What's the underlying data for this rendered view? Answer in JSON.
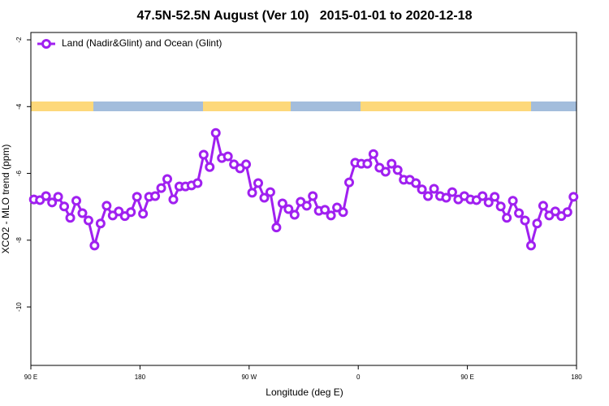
{
  "chart_data": {
    "type": "line",
    "title": "47.5N-52.5N August (Ver 10)   2015-01-01 to 2020-12-18",
    "xlabel": "Longitude (deg E)",
    "ylabel": "XCO2 - MLO trend (ppm)",
    "xlim": [
      90,
      540
    ],
    "ylim": [
      -11.75,
      -1.78
    ],
    "xticks": [
      {
        "value": 90,
        "label": "90 E"
      },
      180,
      {
        "value": 270,
        "label": "90 W"
      },
      {
        "value": 360,
        "label": "0"
      },
      {
        "value": 450,
        "label": "90 E"
      },
      {
        "value": 540,
        "label": "180"
      }
    ],
    "yticks": [
      -2,
      -4,
      -6,
      -8,
      -10
    ],
    "legend": "upper left",
    "x": [
      92.5,
      97.5,
      102.5,
      107.5,
      112.5,
      117.5,
      122.5,
      127.5,
      132.5,
      137.5,
      142.5,
      147.5,
      152.5,
      157.5,
      162.5,
      167.5,
      172.5,
      177.5,
      182.5,
      187.5,
      192.5,
      197.5,
      202.5,
      207.5,
      212.5,
      217.5,
      222.5,
      227.5,
      232.5,
      237.5,
      242.5,
      247.5,
      252.5,
      257.5,
      262.5,
      267.5,
      272.5,
      277.5,
      282.5,
      287.5,
      292.5,
      297.5,
      302.5,
      307.5,
      312.5,
      317.5,
      322.5,
      327.5,
      332.5,
      337.5,
      342.5,
      347.5,
      352.5,
      357.5,
      362.5,
      367.5,
      372.5,
      377.5,
      382.5,
      387.5,
      392.5,
      397.5,
      402.5,
      407.5,
      412.5,
      417.5,
      422.5,
      427.5,
      432.5,
      437.5,
      442.5,
      447.5,
      452.5,
      457.5,
      462.5,
      467.5,
      472.5,
      477.5,
      482.5,
      487.5,
      492.5,
      497.5,
      502.5,
      507.5,
      512.5,
      517.5,
      522.5,
      527.5,
      532.5,
      537.5
    ],
    "series": [
      {
        "name": "Land (Nadir&Glint) and Ocean (Glint)",
        "color": "#a020f0",
        "values": [
          -6.78,
          -6.8,
          -6.68,
          -6.87,
          -6.7,
          -6.99,
          -7.33,
          -6.82,
          -7.19,
          -7.41,
          -8.16,
          -7.5,
          -6.97,
          -7.26,
          -7.14,
          -7.28,
          -7.16,
          -6.7,
          -7.21,
          -6.7,
          -6.68,
          -6.44,
          -6.17,
          -6.78,
          -6.39,
          -6.39,
          -6.36,
          -6.29,
          -5.44,
          -5.81,
          -4.79,
          -5.54,
          -5.49,
          -5.73,
          -5.85,
          -5.73,
          -6.58,
          -6.29,
          -6.73,
          -6.56,
          -7.62,
          -6.9,
          -7.07,
          -7.24,
          -6.85,
          -6.97,
          -6.68,
          -7.12,
          -7.09,
          -7.26,
          -7.02,
          -7.16,
          -6.27,
          -5.68,
          -5.71,
          -5.71,
          -5.42,
          -5.83,
          -5.95,
          -5.71,
          -5.9,
          -6.19,
          -6.19,
          -6.29,
          -6.48,
          -6.68,
          -6.46,
          -6.68,
          -6.73,
          -6.56,
          -6.78,
          -6.68,
          -6.78,
          -6.8,
          -6.68,
          -6.87,
          -6.7,
          -6.99,
          -7.33,
          -6.82,
          -7.19,
          -7.41,
          -8.16,
          -7.5,
          -6.97,
          -7.26,
          -7.14,
          -7.28,
          -7.16,
          -6.7
        ]
      }
    ]
  }
}
